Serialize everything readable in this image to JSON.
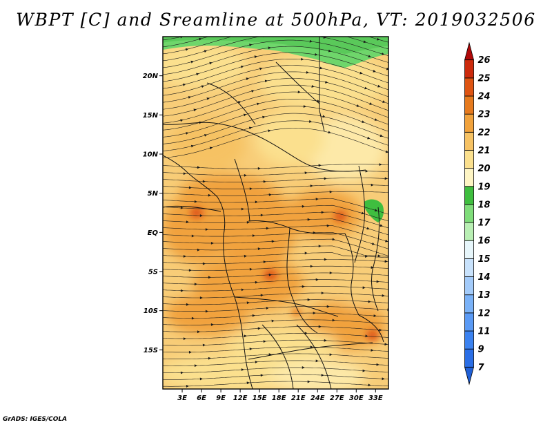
{
  "title": "WBPT [C] and Sreamline at 500hPa, VT: 2019032506",
  "credit": "GrADS: IGES/COLA",
  "lat_labels": [
    "20N",
    "15N",
    "10N",
    "5N",
    "EQ",
    "5S",
    "10S",
    "15S"
  ],
  "lat_values": [
    20,
    15,
    10,
    5,
    0,
    -5,
    -10,
    -15
  ],
  "lon_labels": [
    "3E",
    "6E",
    "9E",
    "12E",
    "15E",
    "18E",
    "21E",
    "24E",
    "27E",
    "30E",
    "33E"
  ],
  "lon_values": [
    3,
    6,
    9,
    12,
    15,
    18,
    21,
    24,
    27,
    30,
    33
  ],
  "map_extent": {
    "lon_min": 0,
    "lon_max": 35,
    "lat_min": -20,
    "lat_max": 25
  },
  "colorbar": {
    "labels": [
      "7",
      "9",
      "11",
      "12",
      "13",
      "14",
      "15",
      "16",
      "17",
      "18",
      "19",
      "20",
      "21",
      "22",
      "23",
      "24",
      "25",
      "26"
    ],
    "colors": [
      "#1f5fd6",
      "#2a6ee6",
      "#3b82f0",
      "#5a9af5",
      "#7ab2f8",
      "#a3cbfa",
      "#c8e2fc",
      "#e7f6fb",
      "#b9efb4",
      "#7fdd7a",
      "#3fbe3f",
      "#fef5c4",
      "#fbe08e",
      "#f6c264",
      "#f1a23c",
      "#e67a1e",
      "#de5412",
      "#cc2a0c",
      "#b00808"
    ]
  },
  "chart_data": {
    "type": "map",
    "variable": "WBPT [C] and Sreamline at 500hPa",
    "valid_time": "2019032506",
    "region": {
      "lon_range": [
        0,
        35
      ],
      "lat_range": [
        -20,
        25
      ]
    },
    "legend_levels": [
      7,
      9,
      11,
      12,
      13,
      14,
      15,
      16,
      17,
      18,
      19,
      20,
      21,
      22,
      23,
      24,
      25,
      26
    ]
  }
}
